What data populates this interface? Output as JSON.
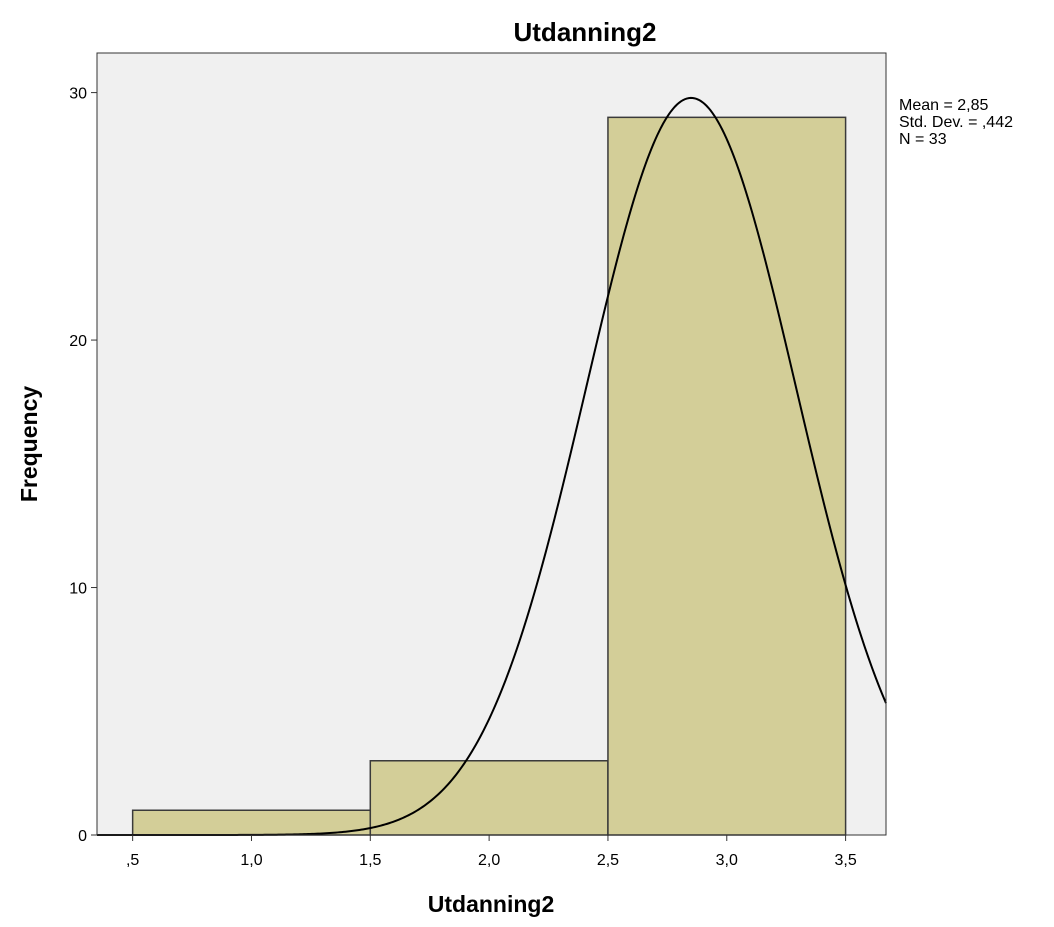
{
  "chart_data": {
    "type": "bar",
    "title": "Utdanning2",
    "xlabel": "Utdanning2",
    "ylabel": "Frequency",
    "bins": [
      {
        "from": 0.5,
        "to": 1.5,
        "value": 1
      },
      {
        "from": 1.5,
        "to": 2.5,
        "value": 3
      },
      {
        "from": 2.5,
        "to": 3.5,
        "value": 29
      }
    ],
    "xlim": [
      0.35,
      3.67
    ],
    "ylim": [
      0,
      31.6
    ],
    "x_ticks": [
      {
        "value": 0.5,
        "label": ",5"
      },
      {
        "value": 1.0,
        "label": "1,0"
      },
      {
        "value": 1.5,
        "label": "1,5"
      },
      {
        "value": 2.0,
        "label": "2,0"
      },
      {
        "value": 2.5,
        "label": "2,5"
      },
      {
        "value": 3.0,
        "label": "3,0"
      },
      {
        "value": 3.5,
        "label": "3,5"
      }
    ],
    "y_ticks": [
      {
        "value": 0,
        "label": "0"
      },
      {
        "value": 10,
        "label": "10"
      },
      {
        "value": 20,
        "label": "20"
      },
      {
        "value": 30,
        "label": "30"
      }
    ],
    "normal_curve": {
      "mean": 2.85,
      "std": 0.442,
      "n": 33,
      "bin_width": 1.0
    },
    "stats": {
      "mean": "Mean = 2,85",
      "std_dev": "Std. Dev. = ,442",
      "n": "N = 33"
    },
    "grid": false,
    "colors": {
      "bar_fill": "#d3ce98",
      "bar_stroke": "#3a3a3a",
      "plot_background": "#f0f0f0",
      "curve": "#000000"
    }
  }
}
